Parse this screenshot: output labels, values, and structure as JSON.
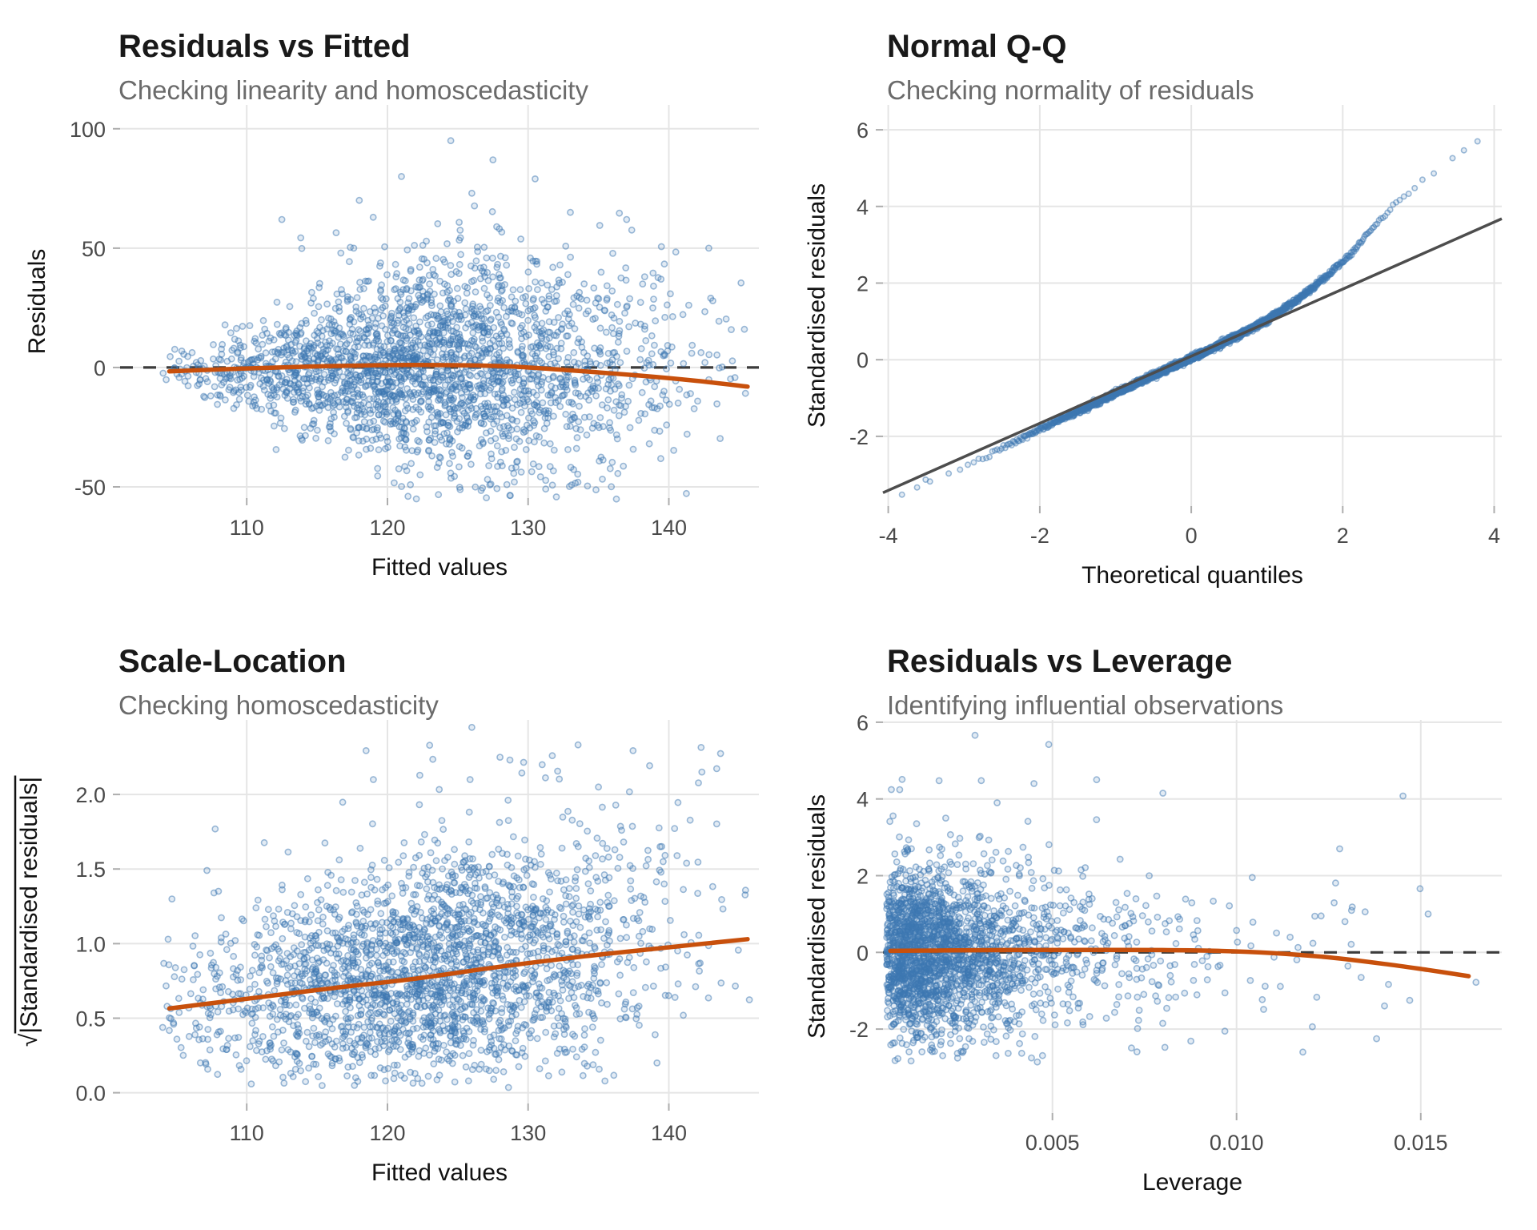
{
  "colors": {
    "background": "#FFFFFF",
    "point": "#3E78B2",
    "trend": "#C8500C",
    "reference_line": "#4D4D4D",
    "zero_dash": "#3C3C3C",
    "grid": "#E5E5E5",
    "tick_mark": "#ADADAD",
    "tick_label": "#4A4A4A",
    "axis_label": "#111111",
    "title": "#191919",
    "subtitle": "#6B6B6B"
  },
  "chart_data": [
    {
      "id": "residuals-vs-fitted",
      "type": "scatter",
      "title": "Residuals vs Fitted",
      "subtitle": "Checking linearity and homoscedasticity",
      "xlabel": "Fitted values",
      "ylabel": "Residuals",
      "xlim": [
        101,
        146.4
      ],
      "ylim": [
        -54.7,
        110
      ],
      "xticks": [
        110,
        120,
        130,
        140
      ],
      "xtick_labels": [
        "110",
        "120",
        "130",
        "140"
      ],
      "yticks": [
        -50,
        0,
        50,
        100
      ],
      "ytick_labels": [
        "-50",
        "0",
        "50",
        "100"
      ],
      "grid": true,
      "zero_line": true,
      "n_points": 2400,
      "gen": {
        "kind": "fan_scatter",
        "seed": 42,
        "x_mean": 123,
        "x_sd": 8.4,
        "x_min": 104,
        "x_max": 145.8,
        "y_sd_origin": 101,
        "y_sd_slope": 1.02,
        "y_sd_min": 4.5,
        "y_sd_max": 23,
        "upper_skew_prob": 0.045,
        "skew_x_min": 112,
        "upper_skew_scale": 24,
        "y_min": -56,
        "y_max": 93
      },
      "trend_line": [
        [
          104.5,
          -1.6
        ],
        [
          110,
          -0.4
        ],
        [
          116,
          0.6
        ],
        [
          122,
          1.1
        ],
        [
          128,
          0.6
        ],
        [
          133,
          -1.2
        ],
        [
          138,
          -3.4
        ],
        [
          142,
          -5.6
        ],
        [
          145.6,
          -8
        ]
      ],
      "outliers": [
        [
          124.5,
          95
        ],
        [
          127.5,
          87
        ],
        [
          121,
          80
        ],
        [
          130.5,
          79
        ],
        [
          133,
          65
        ],
        [
          112.5,
          62
        ],
        [
          137,
          62
        ],
        [
          118,
          70
        ],
        [
          126,
          73
        ]
      ]
    },
    {
      "id": "normal-qq",
      "type": "scatter",
      "title": "Normal Q-Q",
      "subtitle": "Checking normality of residuals",
      "xlabel": "Theoretical quantiles",
      "ylabel": "Standardised residuals",
      "xlim": [
        -4.07,
        4.1
      ],
      "ylim": [
        -3.82,
        6.65
      ],
      "xticks": [
        -4,
        -2,
        0,
        2,
        4
      ],
      "xtick_labels": [
        "-4",
        "-2",
        "0",
        "2",
        "4"
      ],
      "yticks": [
        -2,
        0,
        2,
        4,
        6
      ],
      "ytick_labels": [
        "-2",
        "0",
        "2",
        "4",
        "6"
      ],
      "grid": true,
      "zero_line": false,
      "n_points": 2200,
      "gen": {
        "kind": "qq",
        "seed": 7,
        "noise": 0.035,
        "extra_x": [
          -3.82,
          -3.62,
          -3.45,
          3.45,
          3.6,
          3.78
        ]
      },
      "qq_curve": [
        [
          -3.85,
          -3.55
        ],
        [
          -3.5,
          -3.22
        ],
        [
          -3.1,
          -2.88
        ],
        [
          -2.7,
          -2.52
        ],
        [
          -2.4,
          -2.22
        ],
        [
          -2.1,
          -1.92
        ],
        [
          -1.8,
          -1.62
        ],
        [
          -1.4,
          -1.26
        ],
        [
          -1,
          -0.88
        ],
        [
          -0.6,
          -0.5
        ],
        [
          -0.2,
          -0.14
        ],
        [
          0.2,
          0.22
        ],
        [
          0.6,
          0.62
        ],
        [
          1,
          1.04
        ],
        [
          1.4,
          1.56
        ],
        [
          1.8,
          2.2
        ],
        [
          2.1,
          2.75
        ],
        [
          2.4,
          3.45
        ],
        [
          2.7,
          4.05
        ],
        [
          3,
          4.6
        ],
        [
          3.3,
          5.05
        ],
        [
          3.55,
          5.4
        ],
        [
          3.78,
          5.7
        ]
      ],
      "reference_line": [
        [
          -4.07,
          -3.47
        ],
        [
          4.1,
          3.68
        ]
      ]
    },
    {
      "id": "scale-location",
      "type": "scatter",
      "title": "Scale-Location",
      "subtitle": "Checking homoscedasticity",
      "xlabel": "Fitted values",
      "ylabel": "√|Standardised residuals|",
      "ylabel_overline": true,
      "xlim": [
        101,
        146.4
      ],
      "ylim": [
        -0.072,
        2.5
      ],
      "xticks": [
        110,
        120,
        130,
        140
      ],
      "xtick_labels": [
        "110",
        "120",
        "130",
        "140"
      ],
      "yticks": [
        0,
        0.5,
        1,
        1.5,
        2
      ],
      "ytick_labels": [
        "0.0",
        "0.5",
        "1.0",
        "1.5",
        "2.0"
      ],
      "grid": true,
      "zero_line": false,
      "n_points": 2400,
      "gen": {
        "kind": "sqrt_scatter",
        "seed": 99,
        "x_mean": 123,
        "x_sd": 8.4,
        "x_min": 104,
        "x_max": 145.8,
        "c0": 0.48,
        "c1": 1.58,
        "boost_prob": 0.07,
        "y_min": 0.02,
        "y_max": 2.38
      },
      "trend_line": [
        [
          104.5,
          0.565
        ],
        [
          110,
          0.63
        ],
        [
          116,
          0.7
        ],
        [
          122,
          0.765
        ],
        [
          128,
          0.845
        ],
        [
          134,
          0.915
        ],
        [
          140,
          0.975
        ],
        [
          145.6,
          1.03
        ]
      ],
      "outliers": [
        [
          123,
          2.33
        ],
        [
          128,
          2.25
        ],
        [
          131,
          2.2
        ],
        [
          119,
          2.1
        ],
        [
          135,
          2.05
        ],
        [
          126,
          2.45
        ]
      ]
    },
    {
      "id": "residuals-vs-leverage",
      "type": "scatter",
      "title": "Residuals vs Leverage",
      "subtitle": "Identifying influential observations",
      "xlabel": "Leverage",
      "ylabel": "Standardised residuals",
      "xlim": [
        0.0004,
        0.0172
      ],
      "ylim": [
        -4.19,
        6.06
      ],
      "xticks": [
        0.005,
        0.01,
        0.015
      ],
      "xtick_labels": [
        "0.005",
        "0.010",
        "0.015"
      ],
      "yticks": [
        -2,
        0,
        2,
        4,
        6
      ],
      "ytick_labels": [
        "-2",
        "0",
        "2",
        "4",
        "6"
      ],
      "grid": true,
      "zero_line": true,
      "n_points": 2300,
      "gen": {
        "kind": "leverage_scatter",
        "seed": 123,
        "x_min": 0.0005,
        "x_max": 0.0168,
        "y_sd": 1.05,
        "upper_skew_prob": 0.045,
        "upper_skew_scale": 1.5,
        "y_min": -2.88,
        "y_max": 4.55
      },
      "trend_line": [
        [
          0.0006,
          0.04
        ],
        [
          0.002,
          0.05
        ],
        [
          0.004,
          0.06
        ],
        [
          0.006,
          0.065
        ],
        [
          0.008,
          0.06
        ],
        [
          0.0095,
          0.04
        ],
        [
          0.011,
          -0.02
        ],
        [
          0.0125,
          -0.13
        ],
        [
          0.014,
          -0.3
        ],
        [
          0.0152,
          -0.46
        ],
        [
          0.0163,
          -0.62
        ]
      ],
      "outliers": [
        [
          0.0029,
          5.66
        ],
        [
          0.0049,
          5.42
        ],
        [
          0.0045,
          4.4
        ],
        [
          0.0062,
          4.5
        ],
        [
          0.008,
          4.15
        ],
        [
          0.0035,
          3.9
        ],
        [
          0.0128,
          2.7
        ],
        [
          0.0152,
          1.0
        ],
        [
          0.0147,
          -1.25
        ],
        [
          0.0165,
          -0.78
        ],
        [
          0.0138,
          -2.25
        ],
        [
          0.0118,
          -2.6
        ]
      ]
    }
  ]
}
